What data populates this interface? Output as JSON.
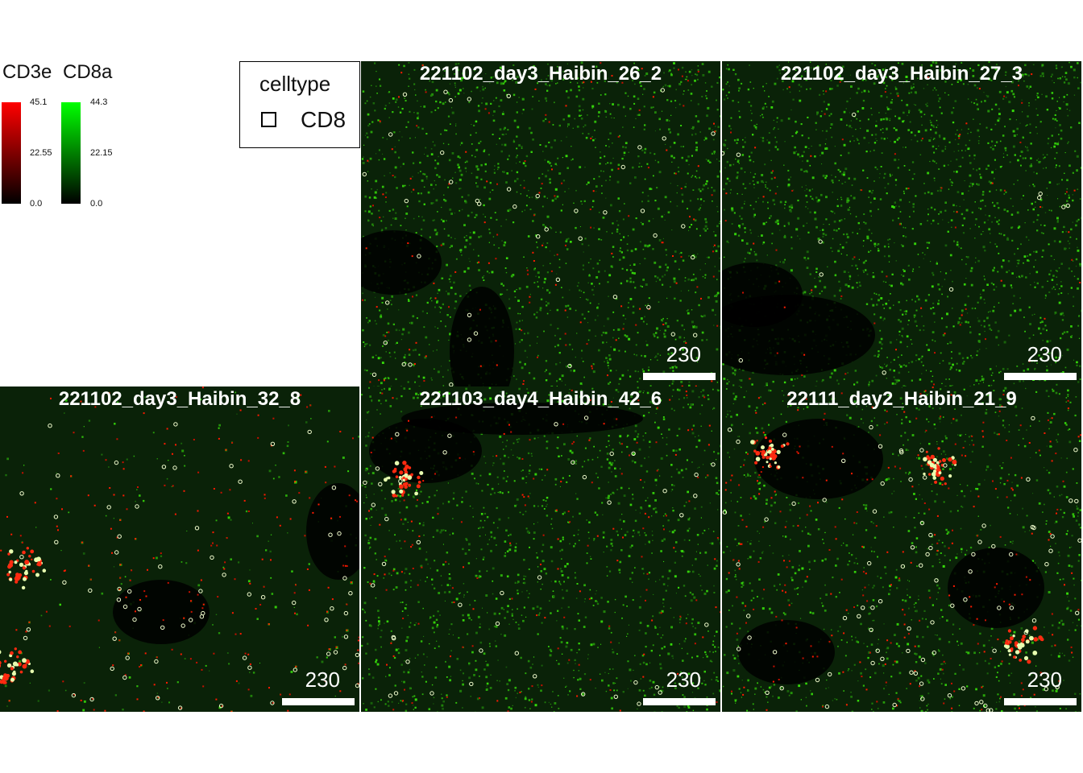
{
  "legend": {
    "channels": [
      {
        "name": "CD3e",
        "max": "45.1",
        "mid": "22.55",
        "min": "0.0",
        "color": "#ff0000"
      },
      {
        "name": "CD8a",
        "max": "44.3",
        "mid": "22.15",
        "min": "0.0",
        "color": "#00ff00"
      }
    ],
    "celltype": {
      "title": "celltype",
      "entries": [
        "CD8"
      ]
    }
  },
  "panels": [
    {
      "title": "221102_day3_Haibin_26_2",
      "scale_label": "230"
    },
    {
      "title": "221102_day3_Haibin_27_3",
      "scale_label": "230"
    },
    {
      "title": "221102_day3_Haibin_32_8",
      "scale_label": "230"
    },
    {
      "title": "221103_day4_Haibin_42_6",
      "scale_label": "230"
    },
    {
      "title": "22111_day2_Haibin_21_9",
      "scale_label": "230"
    }
  ]
}
